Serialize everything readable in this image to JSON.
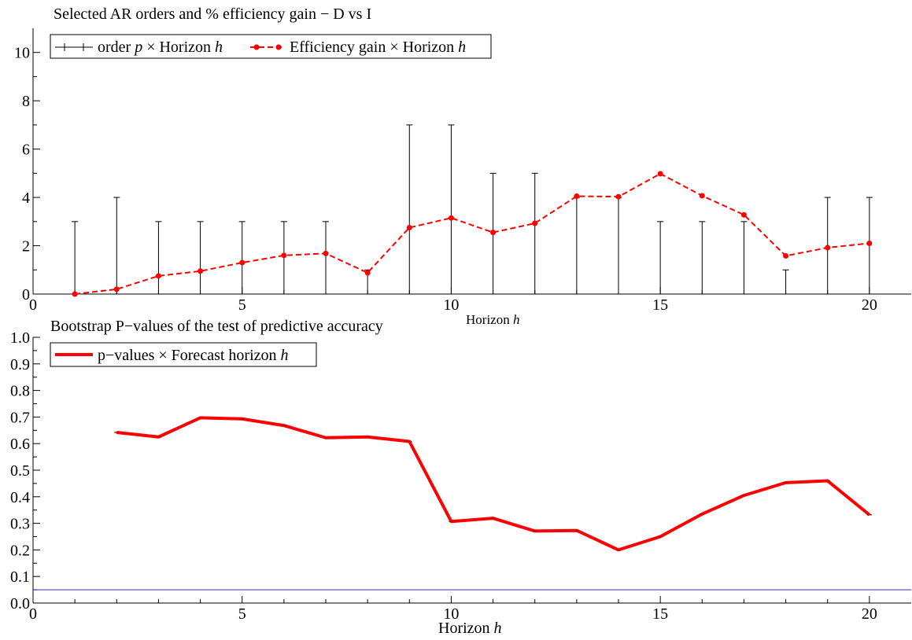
{
  "chart_data": [
    {
      "type": "line",
      "title": "Selected AR orders and % efficiency gain − D vs I",
      "xlabel_prefix": "Horizon",
      "xlabel_var": "h",
      "xlim": [
        0,
        21
      ],
      "ylim": [
        0,
        11
      ],
      "xticks": [
        0,
        5,
        10,
        15,
        20
      ],
      "yticks": [
        0,
        2,
        4,
        6,
        8,
        10
      ],
      "grid": false,
      "legend_position": "top-left",
      "series": [
        {
          "name_prefix": "order",
          "name_var": "p",
          "name_suffix": " × Horizon",
          "name_var2": "h",
          "style": "needle",
          "color": "#000000",
          "x": [
            1,
            2,
            3,
            4,
            5,
            6,
            7,
            8,
            9,
            10,
            11,
            12,
            13,
            14,
            15,
            16,
            17,
            18,
            19,
            20
          ],
          "y": [
            3,
            4,
            3,
            3,
            3,
            3,
            3,
            1,
            7,
            7,
            5,
            5,
            4,
            4,
            3,
            3,
            3,
            1,
            4,
            4
          ]
        },
        {
          "name_prefix": "Efficiency gain × Horizon",
          "name_var": "h",
          "style": "dashed-dot",
          "color": "#ff0000",
          "x": [
            1,
            2,
            3,
            4,
            5,
            6,
            7,
            8,
            9,
            10,
            11,
            12,
            13,
            14,
            15,
            16,
            17,
            18,
            19,
            20
          ],
          "y": [
            0.0,
            0.2,
            0.75,
            0.95,
            1.3,
            1.6,
            1.68,
            0.88,
            2.75,
            3.15,
            2.55,
            2.93,
            4.05,
            4.03,
            4.98,
            4.07,
            3.28,
            1.58,
            1.92,
            2.1
          ]
        }
      ]
    },
    {
      "type": "line",
      "title": "Bootstrap P−values of the test of predictive accuracy",
      "xlabel_prefix": "Horizon",
      "xlabel_var": "h",
      "xlim": [
        0,
        21
      ],
      "ylim": [
        0,
        1
      ],
      "xticks": [
        0,
        5,
        10,
        15,
        20
      ],
      "yticks": [
        0.0,
        0.1,
        0.2,
        0.3,
        0.4,
        0.5,
        0.6,
        0.7,
        0.8,
        0.9,
        1.0
      ],
      "ytick_labels": [
        "0.0",
        "0.1",
        "0.2",
        "0.3",
        "0.4",
        "0.5",
        "0.6",
        "0.7",
        "0.8",
        "0.9",
        "1.0"
      ],
      "grid": false,
      "legend_position": "top-left",
      "reference_line": {
        "y": 0.05,
        "color": "#3333cc"
      },
      "series": [
        {
          "name_prefix": "p−values × Forecast horizon",
          "name_var": "h",
          "style": "thick-solid",
          "color": "#ff0000",
          "x": [
            2,
            3,
            4,
            5,
            6,
            7,
            8,
            9,
            10,
            11,
            12,
            13,
            14,
            15,
            16,
            17,
            18,
            19,
            20
          ],
          "y": [
            0.642,
            0.625,
            0.697,
            0.693,
            0.668,
            0.622,
            0.625,
            0.608,
            0.307,
            0.319,
            0.271,
            0.273,
            0.2,
            0.25,
            0.335,
            0.405,
            0.453,
            0.46,
            0.332
          ]
        }
      ]
    }
  ]
}
